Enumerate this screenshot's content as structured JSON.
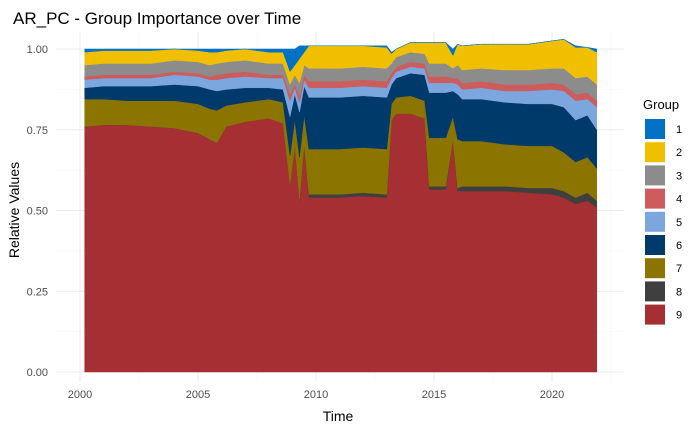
{
  "chart_data": {
    "type": "area",
    "stacked": true,
    "title": "AR_PC - Group Importance over Time",
    "xlabel": "Time",
    "ylabel": "Relative Values",
    "xlim": [
      2000,
      2022
    ],
    "ylim": [
      0,
      1
    ],
    "x_ticks": [
      2000,
      2005,
      2010,
      2015,
      2020
    ],
    "y_ticks": [
      0.0,
      0.25,
      0.5,
      0.75,
      1.0
    ],
    "y_tick_labels": [
      "0.00",
      "0.25",
      "0.50",
      "0.75",
      "1.00"
    ],
    "grid": true,
    "legend": {
      "title": "Group",
      "position": "right",
      "items": [
        {
          "label": "1",
          "color": "#0072C6"
        },
        {
          "label": "2",
          "color": "#F0C000"
        },
        {
          "label": "3",
          "color": "#8C8C8C"
        },
        {
          "label": "4",
          "color": "#CD5C5C"
        },
        {
          "label": "5",
          "color": "#7BA7DE"
        },
        {
          "label": "6",
          "color": "#003A6B"
        },
        {
          "label": "7",
          "color": "#8B7500"
        },
        {
          "label": "8",
          "color": "#3F3F3F"
        },
        {
          "label": "9",
          "color": "#A52F32"
        }
      ]
    },
    "stack_order_bottom_to_top": [
      "9",
      "8",
      "7",
      "6",
      "5",
      "4",
      "3",
      "2",
      "1"
    ],
    "x": [
      2000.2,
      2001.0,
      2002.0,
      2003.0,
      2004.0,
      2005.0,
      2005.5,
      2005.8,
      2006.2,
      2007.0,
      2008.0,
      2008.6,
      2008.9,
      2009.1,
      2009.3,
      2009.5,
      2009.7,
      2010.0,
      2011.0,
      2012.0,
      2013.0,
      2013.2,
      2013.4,
      2014.0,
      2014.6,
      2014.8,
      2015.5,
      2015.8,
      2016.0,
      2016.2,
      2017.0,
      2018.0,
      2019.0,
      2020.0,
      2020.5,
      2021.0,
      2021.5,
      2021.9
    ],
    "series": [
      {
        "name": "9",
        "values": [
          0.76,
          0.765,
          0.765,
          0.76,
          0.755,
          0.74,
          0.72,
          0.71,
          0.76,
          0.775,
          0.785,
          0.77,
          0.58,
          0.7,
          0.53,
          0.7,
          0.54,
          0.54,
          0.54,
          0.545,
          0.54,
          0.78,
          0.8,
          0.8,
          0.785,
          0.565,
          0.565,
          0.72,
          0.56,
          0.56,
          0.56,
          0.56,
          0.555,
          0.55,
          0.54,
          0.52,
          0.53,
          0.51
        ]
      },
      {
        "name": "8",
        "values": [
          0.0,
          0.0,
          0.0,
          0.0,
          0.0,
          0.0,
          0.0,
          0.0,
          0.0,
          0.0,
          0.0,
          0.0,
          0.0,
          0.0,
          0.005,
          0.005,
          0.01,
          0.01,
          0.01,
          0.01,
          0.01,
          0.0,
          0.0,
          0.0,
          0.0,
          0.01,
          0.01,
          0.0,
          0.01,
          0.015,
          0.015,
          0.015,
          0.015,
          0.02,
          0.02,
          0.02,
          0.025,
          0.02
        ]
      },
      {
        "name": "7",
        "values": [
          0.085,
          0.08,
          0.075,
          0.08,
          0.085,
          0.09,
          0.095,
          0.1,
          0.065,
          0.06,
          0.06,
          0.065,
          0.09,
          0.08,
          0.13,
          0.09,
          0.14,
          0.14,
          0.14,
          0.14,
          0.14,
          0.05,
          0.05,
          0.055,
          0.055,
          0.15,
          0.15,
          0.07,
          0.15,
          0.14,
          0.14,
          0.13,
          0.13,
          0.13,
          0.12,
          0.11,
          0.11,
          0.1
        ]
      },
      {
        "name": "6",
        "values": [
          0.035,
          0.04,
          0.045,
          0.045,
          0.05,
          0.055,
          0.06,
          0.06,
          0.05,
          0.045,
          0.035,
          0.04,
          0.12,
          0.08,
          0.14,
          0.09,
          0.16,
          0.16,
          0.16,
          0.16,
          0.16,
          0.06,
          0.06,
          0.07,
          0.08,
          0.14,
          0.14,
          0.08,
          0.14,
          0.13,
          0.13,
          0.13,
          0.13,
          0.13,
          0.14,
          0.13,
          0.13,
          0.12
        ]
      },
      {
        "name": "5",
        "values": [
          0.025,
          0.025,
          0.025,
          0.025,
          0.03,
          0.03,
          0.03,
          0.035,
          0.035,
          0.035,
          0.03,
          0.035,
          0.05,
          0.02,
          0.03,
          0.02,
          0.03,
          0.03,
          0.03,
          0.03,
          0.03,
          0.02,
          0.02,
          0.02,
          0.02,
          0.03,
          0.03,
          0.025,
          0.03,
          0.03,
          0.035,
          0.035,
          0.04,
          0.045,
          0.05,
          0.06,
          0.05,
          0.07
        ]
      },
      {
        "name": "4",
        "values": [
          0.01,
          0.01,
          0.01,
          0.01,
          0.01,
          0.01,
          0.01,
          0.015,
          0.015,
          0.015,
          0.01,
          0.01,
          0.02,
          0.01,
          0.02,
          0.015,
          0.02,
          0.02,
          0.02,
          0.02,
          0.02,
          0.015,
          0.015,
          0.015,
          0.015,
          0.02,
          0.02,
          0.015,
          0.02,
          0.02,
          0.02,
          0.02,
          0.02,
          0.02,
          0.02,
          0.02,
          0.02,
          0.02
        ]
      },
      {
        "name": "3",
        "values": [
          0.035,
          0.035,
          0.035,
          0.035,
          0.035,
          0.035,
          0.035,
          0.035,
          0.035,
          0.035,
          0.035,
          0.035,
          0.03,
          0.03,
          0.04,
          0.03,
          0.04,
          0.04,
          0.04,
          0.04,
          0.04,
          0.03,
          0.03,
          0.03,
          0.03,
          0.04,
          0.04,
          0.03,
          0.04,
          0.04,
          0.04,
          0.045,
          0.045,
          0.045,
          0.05,
          0.05,
          0.05,
          0.05
        ]
      },
      {
        "name": "2",
        "values": [
          0.04,
          0.04,
          0.04,
          0.04,
          0.035,
          0.035,
          0.04,
          0.035,
          0.035,
          0.035,
          0.035,
          0.035,
          0.04,
          0.03,
          0.075,
          0.04,
          0.07,
          0.07,
          0.07,
          0.065,
          0.065,
          0.03,
          0.025,
          0.03,
          0.035,
          0.065,
          0.065,
          0.04,
          0.065,
          0.075,
          0.075,
          0.08,
          0.08,
          0.085,
          0.09,
          0.095,
          0.09,
          0.1
        ]
      },
      {
        "name": "1",
        "values": [
          0.01,
          0.005,
          0.005,
          0.005,
          0.0,
          0.005,
          0.01,
          0.01,
          0.005,
          0.0,
          0.01,
          0.01,
          0.07,
          0.05,
          0.04,
          0.02,
          0.0,
          0.0,
          0.0,
          0.0,
          0.005,
          0.005,
          0.0,
          0.0,
          0.0,
          0.0,
          0.0,
          0.02,
          0.0,
          0.0,
          0.0,
          0.0,
          0.0,
          0.0,
          0.0,
          0.005,
          0.0,
          0.01
        ]
      }
    ]
  }
}
